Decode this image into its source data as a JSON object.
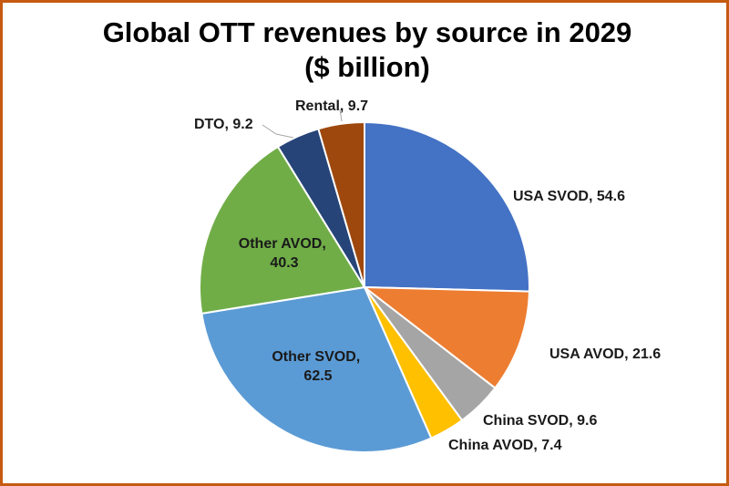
{
  "chart_data": {
    "type": "pie",
    "title_line1": "Global OTT revenues by source in 2029",
    "title_line2": "($ billion)",
    "slices": [
      {
        "name": "USA SVOD",
        "value": 54.6,
        "color": "#4472c4",
        "label": "USA SVOD, 54.6"
      },
      {
        "name": "USA AVOD",
        "value": 21.6,
        "color": "#ed7d31",
        "label": "USA AVOD, 21.6"
      },
      {
        "name": "China SVOD",
        "value": 9.6,
        "color": "#a5a5a5",
        "label": "China SVOD, 9.6"
      },
      {
        "name": "China AVOD",
        "value": 7.4,
        "color": "#ffc000",
        "label": "China AVOD, 7.4"
      },
      {
        "name": "Other SVOD",
        "value": 62.5,
        "color": "#5b9bd5",
        "label_lines": [
          "Other SVOD,",
          "62.5"
        ]
      },
      {
        "name": "Other AVOD",
        "value": 40.3,
        "color": "#70ad47",
        "label_lines": [
          "Other AVOD,",
          "40.3"
        ]
      },
      {
        "name": "DTO",
        "value": 9.2,
        "color": "#264478",
        "label": "DTO, 9.2"
      },
      {
        "name": "Rental",
        "value": 9.7,
        "color": "#9e480e",
        "label": "Rental, 9.7"
      }
    ]
  }
}
